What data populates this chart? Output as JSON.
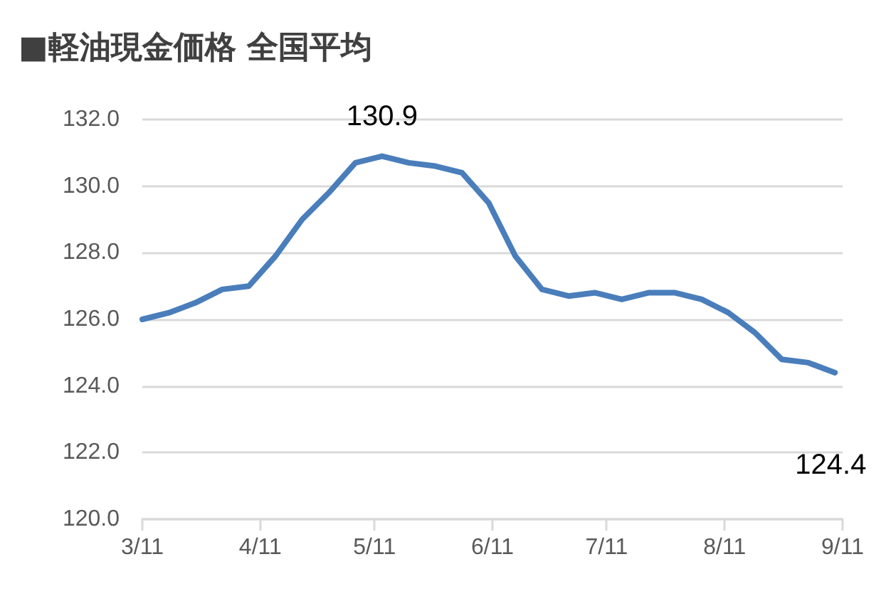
{
  "chart_data": {
    "type": "line",
    "title": "■軽油現金価格 全国平均",
    "x": [
      "--03-11",
      "--03-18",
      "--03-25",
      "--04-01",
      "--04-08",
      "--04-15",
      "--04-22",
      "--04-29",
      "--05-06",
      "--05-13",
      "--05-20",
      "--05-27",
      "--06-03",
      "--06-10",
      "--06-17",
      "--06-24",
      "--07-01",
      "--07-08",
      "--07-15",
      "--07-22",
      "--07-29",
      "--08-05",
      "--08-12",
      "--08-19",
      "--08-26",
      "--09-02",
      "--09-09"
    ],
    "series": [
      {
        "color": "#4a7ebb",
        "values": [
          126.0,
          126.2,
          126.5,
          126.9,
          127.0,
          127.9,
          129.0,
          129.8,
          130.7,
          130.9,
          130.7,
          130.6,
          130.4,
          129.5,
          127.9,
          126.9,
          126.7,
          126.8,
          126.6,
          126.8,
          126.8,
          126.6,
          126.2,
          125.6,
          124.8,
          124.7,
          124.4
        ],
        "value_labels": [
          null,
          null,
          null,
          null,
          null,
          null,
          null,
          null,
          null,
          "130.9",
          null,
          null,
          null,
          null,
          null,
          null,
          null,
          null,
          null,
          null,
          null,
          null,
          null,
          null,
          null,
          null,
          "124.4"
        ]
      }
    ],
    "xlim": [
      "--03-11",
      "--09-11"
    ],
    "xticks": [
      {
        "value": "--03-11",
        "label": "3/11"
      },
      {
        "value": "--04-11",
        "label": "4/11"
      },
      {
        "value": "--05-11",
        "label": "5/11"
      },
      {
        "value": "--06-11",
        "label": "6/11"
      },
      {
        "value": "--07-11",
        "label": "7/11"
      },
      {
        "value": "--08-11",
        "label": "8/11"
      },
      {
        "value": "--09-11",
        "label": "9/11"
      }
    ],
    "ylim": [
      120,
      132
    ],
    "yticks": [
      {
        "value": 120,
        "label": "120.0"
      },
      {
        "value": 122,
        "label": "122.0"
      },
      {
        "value": 124,
        "label": "124.0"
      },
      {
        "value": 126,
        "label": "126.0"
      },
      {
        "value": 128,
        "label": "128.0"
      },
      {
        "value": 130,
        "label": "130.0"
      },
      {
        "value": 132,
        "label": "132.0"
      }
    ],
    "grid": "y",
    "marker": "none",
    "line_style": "solid"
  }
}
